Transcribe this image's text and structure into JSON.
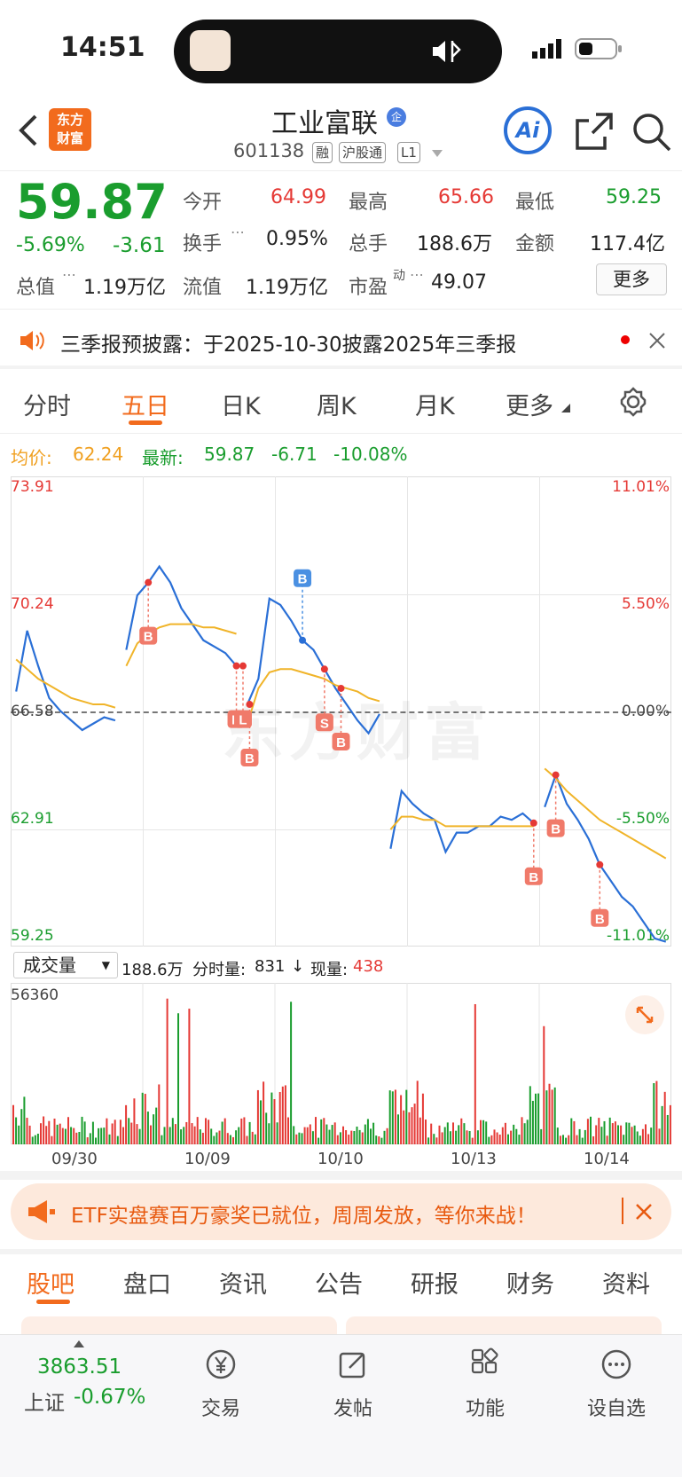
{
  "status": {
    "time": "14:51"
  },
  "header": {
    "logo_line1": "东方",
    "logo_line2": "财富",
    "stock_name": "工业富联",
    "badge": "企",
    "code": "601138",
    "tags": [
      "融",
      "沪股通",
      "L1"
    ],
    "ai_label": "Ai"
  },
  "quote": {
    "price": "59.87",
    "pct": "-5.69%",
    "chg": "-3.61",
    "open_label": "今开",
    "open": "64.99",
    "high_label": "最高",
    "high": "65.66",
    "low_label": "最低",
    "low": "59.25",
    "turnover_label": "换手",
    "turnover": "0.95%",
    "vol_label": "总手",
    "vol": "188.6万",
    "amount_label": "金额",
    "amount": "117.4亿",
    "mcap_label": "总值",
    "mcap": "1.19万亿",
    "float_label": "流值",
    "float": "1.19万亿",
    "pe_label": "市盈",
    "pe_sup": "动",
    "pe": "49.07",
    "more": "更多"
  },
  "notice": {
    "text": "三季报预披露：于2025-10-30披露2025年三季报"
  },
  "tabs": {
    "items": [
      "分时",
      "五日",
      "日K",
      "周K",
      "月K",
      "更多"
    ],
    "active": "五日"
  },
  "info": {
    "avg_label": "均价:",
    "avg": "62.24",
    "latest_label": "最新:",
    "latest": "59.87",
    "latest_chg": "-6.71",
    "latest_pct": "-10.08%"
  },
  "chart_data": {
    "type": "line",
    "y_ticks_left": [
      "73.91",
      "70.24",
      "66.58",
      "62.91",
      "59.25"
    ],
    "y_ticks_right": [
      "11.01%",
      "5.50%",
      "0.00%",
      "-5.50%",
      "-11.01%"
    ],
    "ylim": [
      59.25,
      73.91
    ],
    "base_price": 66.58,
    "days": [
      "09/30",
      "10/09",
      "10/10",
      "10/13",
      "10/14"
    ],
    "series": [
      {
        "name": "",
        "values": [
          67.2,
          69.1,
          68.0,
          67.0,
          66.6,
          66.3,
          66.0,
          66.2,
          66.4,
          66.3,
          68.5,
          70.2,
          70.6,
          71.1,
          70.6,
          69.8,
          69.3,
          68.8,
          68.6,
          68.4,
          68.0,
          66.8,
          67.6,
          70.1,
          69.9,
          69.4,
          68.8,
          68.5,
          67.9,
          67.3,
          66.8,
          66.3,
          65.9,
          66.5,
          62.3,
          64.1,
          63.7,
          63.4,
          63.2,
          62.2,
          62.8,
          62.8,
          63.0,
          63.0,
          63.3,
          63.2,
          63.4,
          63.1,
          63.6,
          64.6,
          63.7,
          63.2,
          62.6,
          61.8,
          61.3,
          60.8,
          60.5,
          60.0,
          59.5,
          59.4
        ]
      },
      {
        "name": "均价",
        "values": [
          68.2,
          67.9,
          67.6,
          67.4,
          67.2,
          67.0,
          66.9,
          66.8,
          66.8,
          66.7,
          68.0,
          68.7,
          69.0,
          69.2,
          69.3,
          69.3,
          69.3,
          69.2,
          69.2,
          69.1,
          69.0,
          66.2,
          67.3,
          67.8,
          67.9,
          67.9,
          67.8,
          67.7,
          67.6,
          67.4,
          67.3,
          67.2,
          67.0,
          66.9,
          62.9,
          63.3,
          63.3,
          63.2,
          63.2,
          63.0,
          63.0,
          63.0,
          63.0,
          63.0,
          63.0,
          63.0,
          63.0,
          63.0,
          64.8,
          64.5,
          64.1,
          63.8,
          63.5,
          63.2,
          63.0,
          62.8,
          62.6,
          62.4,
          62.2,
          62.0
        ]
      }
    ],
    "markers": [
      "B",
      "B",
      "L",
      "B",
      "B",
      "S",
      "B",
      "B",
      "B",
      "B",
      "B"
    ],
    "volume": {
      "label": "成交量",
      "total": "188.6万",
      "fenshi_label": "分时量:",
      "fenshi": "831",
      "arrow": "↓",
      "xian_label": "现量:",
      "xian": "438",
      "max": "56360"
    }
  },
  "banner": {
    "text": "ETF实盘赛百万豪奖已就位，周周发放，等你来战！"
  },
  "subtabs": {
    "items": [
      "股吧",
      "盘口",
      "资讯",
      "公告",
      "研报",
      "财务",
      "资料"
    ],
    "active": "股吧"
  },
  "bottom": {
    "index_value": "3863.51",
    "index_name": "上证",
    "index_pct": "-0.67%",
    "items": [
      "交易",
      "发帖",
      "功能",
      "设自选"
    ]
  },
  "colors": {
    "up": "#e53935",
    "down": "#1a9d2e",
    "accent": "#f26b1d",
    "price_line": "#2a6fd6",
    "avg_line": "#f0b429"
  }
}
